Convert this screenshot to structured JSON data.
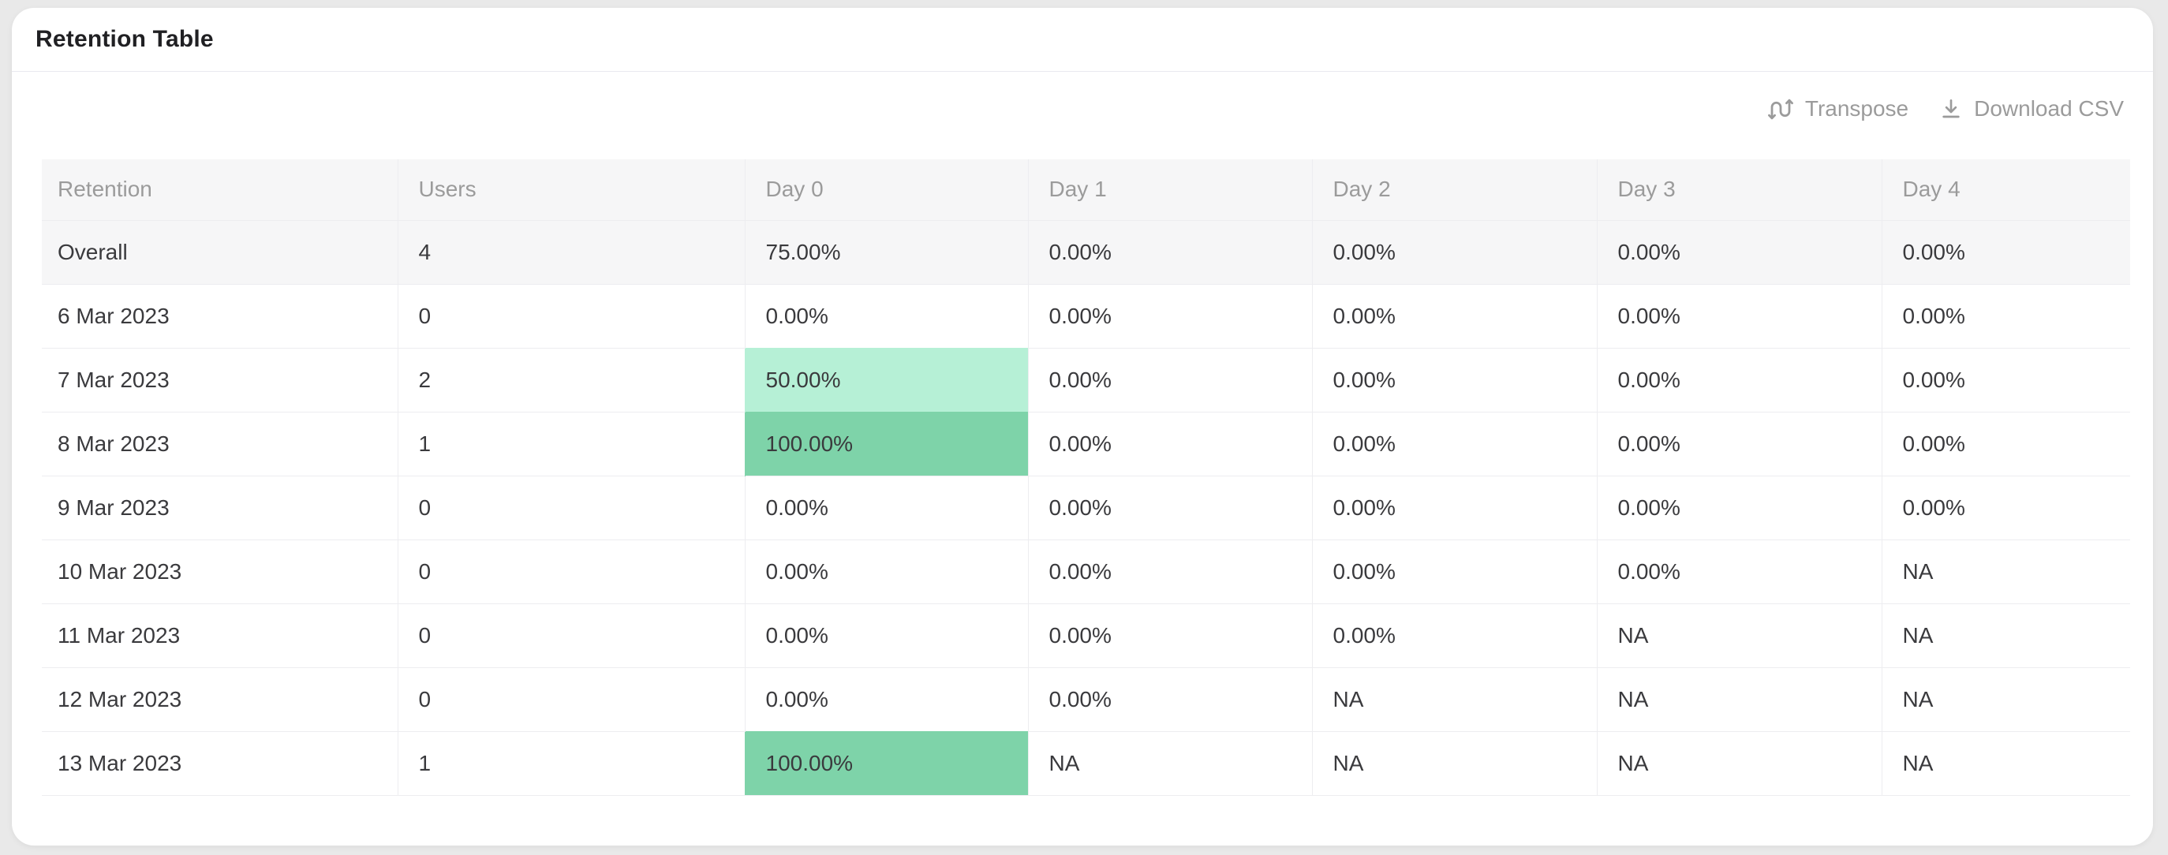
{
  "title": "Retention Table",
  "toolbar": {
    "transpose": "Transpose",
    "download": "Download CSV"
  },
  "colors": {
    "highlight_light": "#b6f0d6",
    "highlight_dark": "#7ed3a9"
  },
  "table": {
    "columns": [
      "Retention",
      "Users",
      "Day 0",
      "Day 1",
      "Day 2",
      "Day 3",
      "Day 4"
    ],
    "rows": [
      {
        "retention": "Overall",
        "users": "4",
        "values": [
          "75.00%",
          "0.00%",
          "0.00%",
          "0.00%",
          "0.00%"
        ],
        "shades": [
          null,
          null,
          null,
          null,
          null
        ],
        "emphasis": true
      },
      {
        "retention": "6 Mar 2023",
        "users": "0",
        "values": [
          "0.00%",
          "0.00%",
          "0.00%",
          "0.00%",
          "0.00%"
        ],
        "shades": [
          null,
          null,
          null,
          null,
          null
        ]
      },
      {
        "retention": "7 Mar 2023",
        "users": "2",
        "values": [
          "50.00%",
          "0.00%",
          "0.00%",
          "0.00%",
          "0.00%"
        ],
        "shades": [
          "light",
          null,
          null,
          null,
          null
        ]
      },
      {
        "retention": "8 Mar 2023",
        "users": "1",
        "values": [
          "100.00%",
          "0.00%",
          "0.00%",
          "0.00%",
          "0.00%"
        ],
        "shades": [
          "dark",
          null,
          null,
          null,
          null
        ]
      },
      {
        "retention": "9 Mar 2023",
        "users": "0",
        "values": [
          "0.00%",
          "0.00%",
          "0.00%",
          "0.00%",
          "0.00%"
        ],
        "shades": [
          null,
          null,
          null,
          null,
          null
        ]
      },
      {
        "retention": "10 Mar 2023",
        "users": "0",
        "values": [
          "0.00%",
          "0.00%",
          "0.00%",
          "0.00%",
          "NA"
        ],
        "shades": [
          null,
          null,
          null,
          null,
          null
        ]
      },
      {
        "retention": "11 Mar 2023",
        "users": "0",
        "values": [
          "0.00%",
          "0.00%",
          "0.00%",
          "NA",
          "NA"
        ],
        "shades": [
          null,
          null,
          null,
          null,
          null
        ]
      },
      {
        "retention": "12 Mar 2023",
        "users": "0",
        "values": [
          "0.00%",
          "0.00%",
          "NA",
          "NA",
          "NA"
        ],
        "shades": [
          null,
          null,
          null,
          null,
          null
        ]
      },
      {
        "retention": "13 Mar 2023",
        "users": "1",
        "values": [
          "100.00%",
          "NA",
          "NA",
          "NA",
          "NA"
        ],
        "shades": [
          "dark",
          null,
          null,
          null,
          null
        ]
      }
    ]
  }
}
